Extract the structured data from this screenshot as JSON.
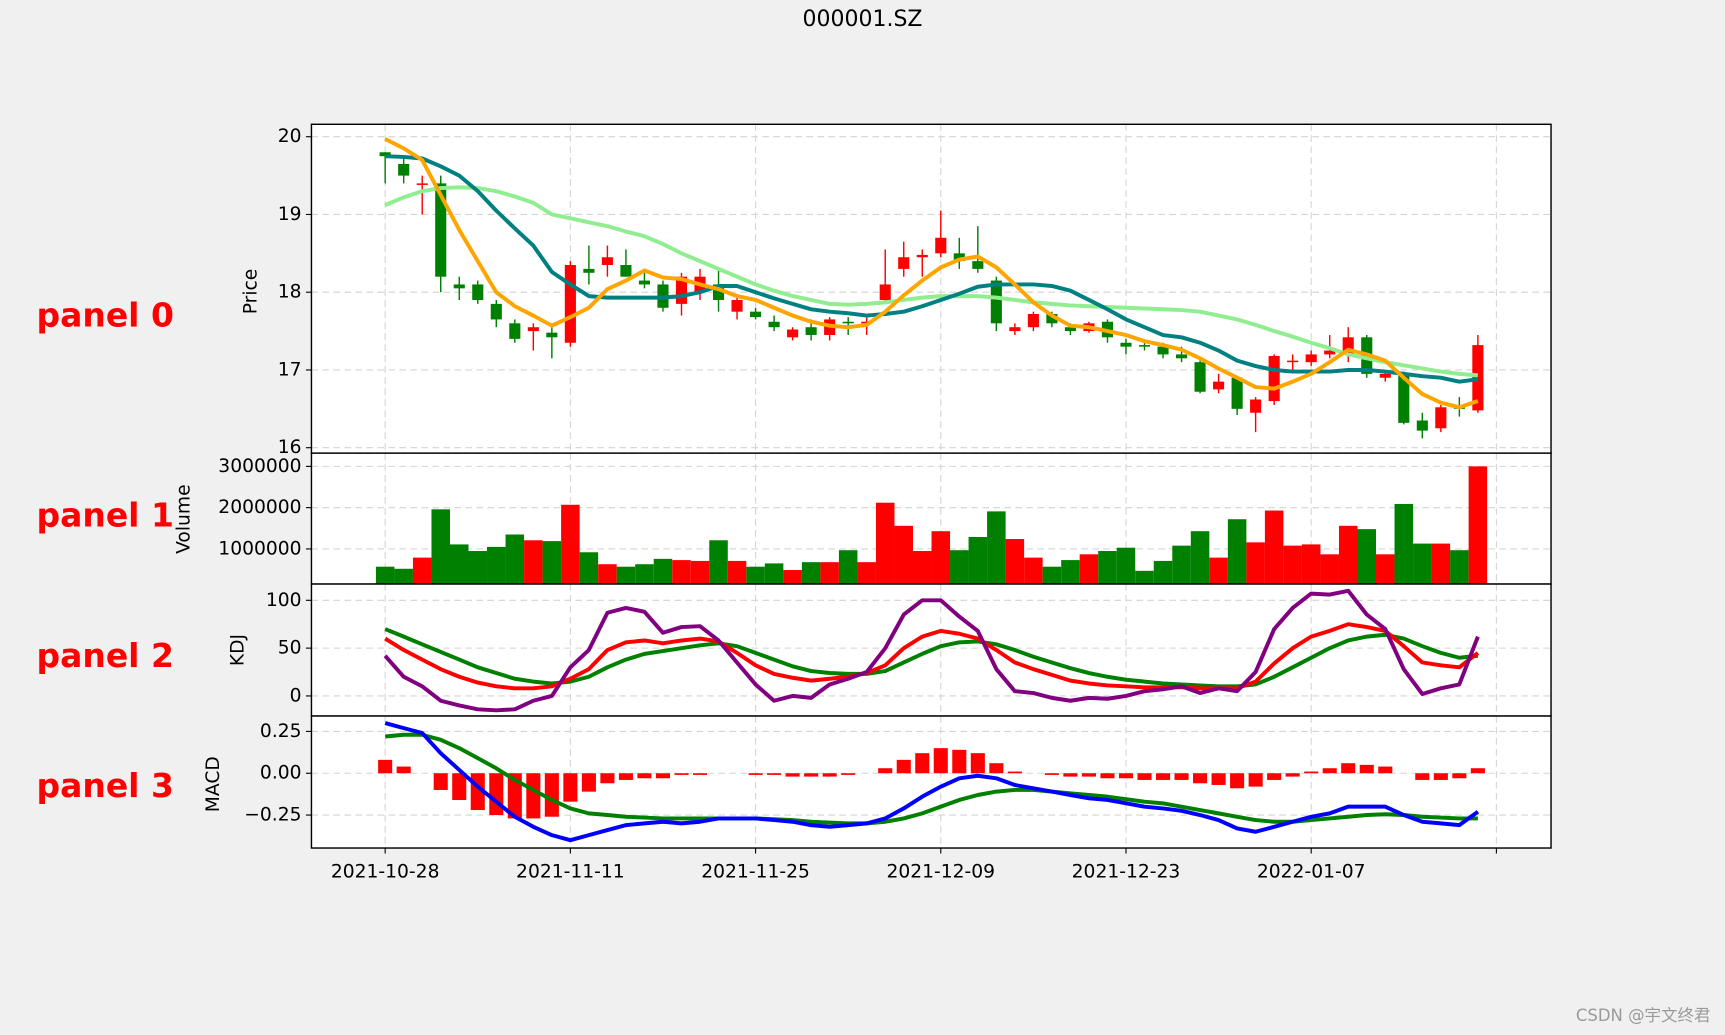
{
  "chart_data": [
    {
      "type": "candlestick",
      "title": "000001.SZ",
      "ylabel": "Price",
      "annotation": "panel 0",
      "up_color": "#ff0000",
      "down_color": "#008000",
      "open": [
        19.8,
        19.65,
        19.38,
        19.4,
        18.1,
        18.1,
        17.85,
        17.6,
        17.5,
        17.48,
        17.35,
        18.3,
        18.35,
        18.35,
        18.15,
        18.1,
        17.85,
        18.0,
        18.1,
        17.75,
        17.75,
        17.62,
        17.42,
        17.55,
        17.45,
        17.62,
        17.6,
        17.9,
        18.3,
        18.45,
        18.5,
        18.5,
        18.4,
        18.15,
        17.5,
        17.55,
        17.72,
        17.55,
        17.5,
        17.62,
        17.35,
        17.32,
        17.3,
        17.2,
        17.1,
        16.75,
        16.9,
        16.45,
        16.6,
        17.1,
        17.1,
        17.2,
        17.2,
        17.42,
        16.9,
        16.95,
        16.35,
        16.25,
        16.52,
        16.48
      ],
      "high": [
        19.8,
        19.75,
        19.5,
        19.5,
        18.2,
        18.15,
        17.9,
        17.65,
        17.6,
        17.6,
        18.4,
        18.6,
        18.6,
        18.55,
        18.3,
        18.15,
        18.25,
        18.3,
        18.3,
        17.95,
        17.8,
        17.7,
        17.55,
        17.65,
        17.68,
        17.68,
        17.7,
        18.55,
        18.65,
        18.55,
        19.05,
        18.7,
        18.85,
        18.2,
        17.6,
        17.75,
        17.75,
        17.6,
        17.62,
        17.65,
        17.4,
        17.35,
        17.35,
        17.3,
        17.12,
        16.95,
        16.92,
        16.65,
        17.2,
        17.2,
        17.25,
        17.45,
        17.55,
        17.45,
        17.0,
        16.98,
        16.45,
        16.55,
        16.65,
        17.45
      ],
      "low": [
        19.4,
        19.4,
        19.0,
        18.0,
        17.9,
        17.85,
        17.55,
        17.35,
        17.25,
        17.15,
        17.3,
        18.1,
        18.2,
        18.2,
        18.05,
        17.75,
        17.7,
        17.9,
        17.75,
        17.65,
        17.65,
        17.5,
        17.38,
        17.38,
        17.38,
        17.45,
        17.45,
        17.85,
        18.2,
        18.2,
        18.45,
        18.3,
        18.25,
        17.5,
        17.45,
        17.5,
        17.55,
        17.45,
        17.48,
        17.35,
        17.2,
        17.25,
        17.15,
        17.1,
        16.7,
        16.7,
        16.42,
        16.2,
        16.55,
        17.0,
        17.05,
        17.15,
        17.1,
        16.9,
        16.85,
        16.3,
        16.12,
        16.2,
        16.4,
        16.45
      ],
      "close": [
        19.75,
        19.5,
        19.4,
        18.2,
        18.05,
        17.9,
        17.65,
        17.4,
        17.55,
        17.42,
        18.35,
        18.25,
        18.45,
        18.2,
        18.1,
        17.8,
        18.2,
        18.2,
        17.9,
        17.9,
        17.68,
        17.55,
        17.52,
        17.45,
        17.65,
        17.6,
        17.62,
        18.1,
        18.45,
        18.48,
        18.7,
        18.4,
        18.3,
        17.6,
        17.55,
        17.72,
        17.6,
        17.5,
        17.6,
        17.42,
        17.3,
        17.3,
        17.2,
        17.15,
        16.72,
        16.85,
        16.5,
        16.62,
        17.18,
        17.12,
        17.2,
        17.25,
        17.42,
        16.95,
        16.95,
        16.32,
        16.22,
        16.52,
        16.5,
        17.32
      ],
      "series": [
        {
          "color": "#90ee90",
          "values": [
            19.12,
            19.22,
            19.3,
            19.34,
            19.35,
            19.34,
            19.3,
            19.23,
            19.15,
            19.0,
            18.95,
            18.9,
            18.85,
            18.78,
            18.72,
            18.62,
            18.5,
            18.4,
            18.3,
            18.2,
            18.1,
            18.02,
            17.95,
            17.9,
            17.85,
            17.84,
            17.85,
            17.87,
            17.9,
            17.93,
            17.95,
            17.95,
            17.95,
            17.93,
            17.9,
            17.87,
            17.85,
            17.83,
            17.82,
            17.81,
            17.8,
            17.79,
            17.78,
            17.77,
            17.75,
            17.7,
            17.65,
            17.58,
            17.5,
            17.43,
            17.35,
            17.28,
            17.2,
            17.15,
            17.1,
            17.06,
            17.02,
            16.98,
            16.95,
            16.93
          ]
        },
        {
          "color": "#008080",
          "values": [
            19.75,
            19.74,
            19.72,
            19.62,
            19.5,
            19.3,
            19.05,
            18.82,
            18.6,
            18.26,
            18.1,
            17.95,
            17.93,
            17.93,
            17.93,
            17.93,
            17.95,
            18.0,
            18.08,
            18.08,
            18.0,
            17.92,
            17.85,
            17.78,
            17.75,
            17.73,
            17.7,
            17.72,
            17.75,
            17.82,
            17.9,
            17.98,
            18.07,
            18.1,
            18.1,
            18.1,
            18.08,
            18.02,
            17.9,
            17.78,
            17.65,
            17.55,
            17.45,
            17.42,
            17.35,
            17.25,
            17.12,
            17.05,
            17.0,
            16.98,
            16.98,
            16.98,
            17.0,
            17.0,
            16.98,
            16.95,
            16.92,
            16.9,
            16.85,
            16.88
          ]
        },
        {
          "color": "#ffa500",
          "values": [
            19.97,
            19.85,
            19.7,
            19.25,
            18.8,
            18.4,
            18.0,
            17.82,
            17.7,
            17.57,
            17.68,
            17.8,
            18.04,
            18.15,
            18.28,
            18.19,
            18.17,
            18.1,
            18.04,
            17.95,
            17.9,
            17.8,
            17.7,
            17.62,
            17.57,
            17.55,
            17.58,
            17.75,
            17.96,
            18.15,
            18.32,
            18.42,
            18.46,
            18.32,
            18.1,
            17.87,
            17.7,
            17.57,
            17.55,
            17.5,
            17.45,
            17.37,
            17.32,
            17.26,
            17.15,
            17.02,
            16.9,
            16.78,
            16.76,
            16.85,
            16.95,
            17.1,
            17.26,
            17.2,
            17.12,
            16.9,
            16.69,
            16.58,
            16.52,
            16.6
          ]
        }
      ],
      "ylim": [
        15.93,
        20.16
      ],
      "yticks": [
        16,
        17,
        18,
        19,
        20
      ],
      "grid": true
    },
    {
      "type": "bar",
      "ylabel": "Volume",
      "annotation": "panel 1",
      "values": [
        570000,
        520000,
        790000,
        1960000,
        1110000,
        950000,
        1050000,
        1350000,
        1210000,
        1190000,
        2070000,
        920000,
        630000,
        570000,
        630000,
        760000,
        730000,
        710000,
        1210000,
        710000,
        570000,
        650000,
        490000,
        680000,
        680000,
        970000,
        680000,
        2120000,
        1560000,
        950000,
        1430000,
        970000,
        1290000,
        1910000,
        1240000,
        790000,
        570000,
        730000,
        870000,
        950000,
        1030000,
        470000,
        710000,
        1080000,
        1430000,
        790000,
        1720000,
        1160000,
        1930000,
        1080000,
        1110000,
        870000,
        1560000,
        1480000,
        870000,
        2090000,
        1130000,
        1130000,
        970000,
        3000000
      ],
      "ylim": [
        150000,
        3320000
      ],
      "yticks": [
        1000000,
        2000000,
        3000000
      ],
      "grid": true
    },
    {
      "type": "line",
      "ylabel": "KDJ",
      "annotation": "panel 2",
      "series": [
        {
          "color": "#008000",
          "values": [
            70,
            62,
            54,
            46,
            38,
            30,
            24,
            18,
            15,
            13,
            15,
            20,
            30,
            38,
            44,
            47,
            50,
            53,
            55,
            52,
            45,
            38,
            31,
            26,
            24,
            23,
            23,
            26,
            35,
            44,
            52,
            56,
            57,
            54,
            48,
            41,
            35,
            29,
            24,
            20,
            17,
            15,
            13,
            12,
            11,
            10,
            10,
            12,
            20,
            30,
            40,
            50,
            58,
            62,
            64,
            60,
            52,
            45,
            40,
            42
          ]
        },
        {
          "color": "#ff0000",
          "values": [
            60,
            48,
            38,
            28,
            20,
            14,
            10,
            8,
            8,
            10,
            18,
            28,
            48,
            56,
            58,
            55,
            58,
            60,
            57,
            45,
            32,
            23,
            19,
            16,
            18,
            20,
            24,
            32,
            50,
            62,
            68,
            65,
            60,
            48,
            35,
            28,
            22,
            16,
            13,
            11,
            10,
            9,
            9,
            9,
            8,
            8,
            8,
            15,
            34,
            50,
            62,
            68,
            75,
            72,
            68,
            52,
            35,
            32,
            30,
            45
          ]
        },
        {
          "color": "#800080",
          "values": [
            42,
            20,
            10,
            -5,
            -10,
            -14,
            -15,
            -14,
            -5,
            0,
            30,
            48,
            87,
            92,
            88,
            66,
            72,
            73,
            58,
            35,
            12,
            -5,
            0,
            -2,
            12,
            18,
            25,
            50,
            85,
            100,
            100,
            83,
            68,
            28,
            5,
            3,
            -2,
            -5,
            -2,
            -3,
            0,
            5,
            7,
            10,
            3,
            8,
            5,
            25,
            70,
            92,
            107,
            106,
            110,
            85,
            70,
            28,
            2,
            8,
            12,
            62
          ]
        }
      ],
      "ylim": [
        -21,
        117
      ],
      "yticks": [
        0,
        50,
        100
      ],
      "grid": true
    },
    {
      "type": "line",
      "ylabel": "MACD",
      "annotation": "panel 3",
      "series": [
        {
          "kind": "bar",
          "color": "#ff0000",
          "values": [
            0.08,
            0.04,
            0.0,
            -0.1,
            -0.16,
            -0.22,
            -0.25,
            -0.27,
            -0.27,
            -0.26,
            -0.17,
            -0.11,
            -0.06,
            -0.04,
            -0.03,
            -0.03,
            -0.01,
            -0.01,
            0,
            0,
            -0.01,
            -0.01,
            -0.02,
            -0.02,
            -0.02,
            -0.01,
            0,
            0.03,
            0.08,
            0.12,
            0.15,
            0.14,
            0.12,
            0.06,
            0.01,
            0,
            -0.01,
            -0.02,
            -0.02,
            -0.03,
            -0.03,
            -0.04,
            -0.04,
            -0.04,
            -0.06,
            -0.07,
            -0.09,
            -0.08,
            -0.04,
            -0.02,
            0.01,
            0.03,
            0.06,
            0.05,
            0.04,
            0,
            -0.04,
            -0.04,
            -0.03,
            0.03
          ]
        },
        {
          "color": "#008000",
          "values": [
            0.22,
            0.23,
            0.23,
            0.2,
            0.15,
            0.09,
            0.03,
            -0.04,
            -0.1,
            -0.16,
            -0.21,
            -0.24,
            -0.25,
            -0.26,
            -0.265,
            -0.27,
            -0.27,
            -0.27,
            -0.27,
            -0.27,
            -0.27,
            -0.275,
            -0.28,
            -0.29,
            -0.295,
            -0.3,
            -0.3,
            -0.29,
            -0.27,
            -0.24,
            -0.2,
            -0.16,
            -0.13,
            -0.11,
            -0.1,
            -0.1,
            -0.11,
            -0.12,
            -0.13,
            -0.14,
            -0.155,
            -0.17,
            -0.18,
            -0.2,
            -0.22,
            -0.24,
            -0.26,
            -0.28,
            -0.29,
            -0.29,
            -0.28,
            -0.27,
            -0.26,
            -0.25,
            -0.245,
            -0.25,
            -0.26,
            -0.265,
            -0.27,
            -0.27
          ]
        },
        {
          "color": "#0000ff",
          "values": [
            0.3,
            0.27,
            0.24,
            0.12,
            0.02,
            -0.08,
            -0.17,
            -0.26,
            -0.32,
            -0.37,
            -0.4,
            -0.37,
            -0.34,
            -0.31,
            -0.3,
            -0.29,
            -0.3,
            -0.29,
            -0.27,
            -0.27,
            -0.27,
            -0.28,
            -0.29,
            -0.31,
            -0.32,
            -0.31,
            -0.3,
            -0.27,
            -0.21,
            -0.14,
            -0.08,
            -0.03,
            -0.015,
            -0.03,
            -0.07,
            -0.09,
            -0.11,
            -0.13,
            -0.15,
            -0.16,
            -0.18,
            -0.2,
            -0.21,
            -0.225,
            -0.25,
            -0.28,
            -0.33,
            -0.35,
            -0.32,
            -0.29,
            -0.26,
            -0.24,
            -0.2,
            -0.2,
            -0.2,
            -0.25,
            -0.29,
            -0.3,
            -0.31,
            -0.23
          ]
        }
      ],
      "ylim": [
        -0.447,
        0.342
      ],
      "yticks": [
        {
          "value": -0.25,
          "label": "−0.25"
        },
        {
          "value": 0,
          "label": "0.00"
        },
        0.25
      ],
      "grid": true,
      "categories": [
        "2021-10-28",
        null,
        null,
        null,
        null,
        null,
        null,
        null,
        null,
        null,
        "2021-11-11",
        null,
        null,
        null,
        null,
        null,
        null,
        null,
        null,
        null,
        "2021-11-25",
        null,
        null,
        null,
        null,
        null,
        null,
        null,
        null,
        null,
        "2021-12-09",
        null,
        null,
        null,
        null,
        null,
        null,
        null,
        null,
        null,
        "2021-12-23",
        null,
        null,
        null,
        null,
        null,
        null,
        null,
        null,
        null,
        "2022-01-07",
        null,
        null,
        null,
        null,
        null,
        null,
        null,
        null,
        null
      ],
      "xlim": [
        -3.98,
        62.95
      ],
      "xticks": [
        0,
        10,
        20,
        30,
        40,
        50,
        60
      ]
    }
  ],
  "watermark": "CSDN @宇文终君"
}
